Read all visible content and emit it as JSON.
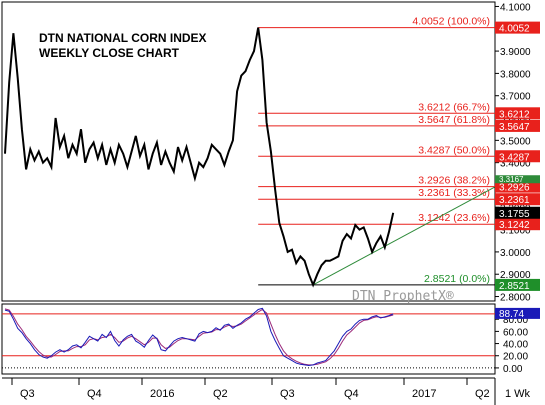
{
  "chart_data": [
    {
      "type": "line",
      "title": "DTN NATIONAL CORN INDEX",
      "subtitle": "WEEKLY CLOSE CHART",
      "watermark": "DTN ProphetX®",
      "ylim": [
        2.78,
        4.12
      ],
      "y_ticks": [
        "4.1000",
        "4.0000",
        "3.9000",
        "3.8000",
        "3.7000",
        "3.6000",
        "3.5000",
        "3.4000",
        "3.3000",
        "3.2000",
        "3.1000",
        "3.0000",
        "2.9000",
        "2.8000"
      ],
      "x_tick_labels": [
        "Q3",
        "Q4",
        "2016",
        "Q2",
        "Q3",
        "Q4",
        "2017",
        "Q2"
      ],
      "series": [
        {
          "color": "#000000",
          "x": [
            0,
            1,
            2,
            3,
            4,
            5,
            6,
            7,
            8,
            9,
            10,
            11,
            12,
            13,
            14,
            15,
            16,
            17,
            18,
            19,
            20,
            21,
            22,
            23,
            24,
            25,
            26,
            27,
            28,
            29,
            30,
            31,
            32,
            33,
            34,
            35,
            36,
            37,
            38,
            39,
            40,
            41,
            42,
            43,
            44,
            45,
            46,
            47,
            48,
            49,
            50,
            51,
            52,
            53,
            54,
            55,
            56,
            57,
            58,
            59,
            60,
            61,
            62,
            63,
            64,
            65,
            66,
            67,
            68,
            69,
            70,
            71,
            72,
            73,
            74,
            75,
            76,
            77,
            78,
            79,
            80,
            81,
            82,
            83,
            84,
            85,
            86,
            87,
            88,
            89,
            90,
            91,
            92
          ],
          "values": [
            3.44,
            3.76,
            3.98,
            3.78,
            3.55,
            3.37,
            3.46,
            3.41,
            3.45,
            3.4,
            3.42,
            3.38,
            3.6,
            3.47,
            3.52,
            3.42,
            3.48,
            3.44,
            3.55,
            3.4,
            3.46,
            3.49,
            3.42,
            3.48,
            3.39,
            3.46,
            3.4,
            3.48,
            3.44,
            3.38,
            3.45,
            3.52,
            3.43,
            3.48,
            3.37,
            3.44,
            3.49,
            3.39,
            3.45,
            3.4,
            3.36,
            3.47,
            3.41,
            3.47,
            3.4,
            3.33,
            3.4,
            3.38,
            3.42,
            3.48,
            3.46,
            3.44,
            3.39,
            3.45,
            3.5,
            3.72,
            3.79,
            3.81,
            3.86,
            3.9,
            4.0052,
            3.86,
            3.58,
            3.45,
            3.28,
            3.13,
            3.07,
            3.0,
            3.01,
            2.95,
            2.98,
            2.96,
            2.9,
            2.8521,
            2.9,
            2.94,
            2.96,
            2.96,
            2.97,
            2.98,
            3.05,
            3.08,
            3.06,
            3.12,
            3.1,
            3.11,
            3.06,
            3.0,
            3.04,
            3.07,
            3.02,
            3.09,
            3.1755
          ]
        }
      ],
      "trendline": {
        "color": "#2e8b3a",
        "from": {
          "x": 73,
          "y": 2.8521
        },
        "to": {
          "x": 116,
          "y": 3.29
        }
      },
      "fib_levels": [
        {
          "value": 4.0052,
          "label": "4.0052 (100.0%)",
          "price": "4.0052"
        },
        {
          "value": 3.6212,
          "label": "3.6212 (66.7%)",
          "price": "3.6212"
        },
        {
          "value": 3.5647,
          "label": "3.5647 (61.8%)",
          "price": "3.5647"
        },
        {
          "value": 3.4287,
          "label": "3.4287 (50.0%)",
          "price": "3.4287"
        },
        {
          "value": 3.2926,
          "label": "3.2926 (38.2%)",
          "price": "3.2926"
        },
        {
          "value": 3.2361,
          "label": "3.2361 (33.3%)",
          "price": "3.2361"
        },
        {
          "value": 3.1242,
          "label": "3.1242 (23.6%)",
          "price": "3.1242"
        },
        {
          "value": 2.8521,
          "label": "2.8521 (0.0%)",
          "price": "2.8521"
        }
      ],
      "last_value": "3.1755",
      "trend_tag": "3.3167",
      "colors": {
        "fib": "#e8211c",
        "last": "#000000",
        "low": "#1f8f2a",
        "trend": "#2e8b3a"
      }
    },
    {
      "type": "line",
      "ylim": [
        -10,
        105
      ],
      "y_ticks": [
        "80.00",
        "60.00",
        "40.00",
        "20.00",
        "0.00"
      ],
      "reference_lines": [
        88.74,
        20
      ],
      "last_value": "88.74",
      "series": [
        {
          "color": "#1a1ab8",
          "values": [
            95,
            93,
            80,
            65,
            58,
            48,
            40,
            30,
            22,
            18,
            16,
            20,
            26,
            30,
            26,
            30,
            36,
            38,
            33,
            42,
            52,
            48,
            44,
            55,
            50,
            60,
            45,
            36,
            46,
            52,
            55,
            44,
            40,
            34,
            45,
            54,
            48,
            30,
            28,
            36,
            44,
            48,
            50,
            48,
            46,
            44,
            56,
            60,
            58,
            60,
            66,
            62,
            70,
            72,
            65,
            70,
            74,
            80,
            84,
            90,
            96,
            98,
            85,
            60,
            45,
            32,
            20,
            16,
            12,
            8,
            6,
            5,
            4,
            5,
            8,
            10,
            12,
            20,
            28,
            40,
            52,
            60,
            64,
            72,
            78,
            80,
            80,
            84,
            86,
            82,
            84,
            86,
            88.74
          ]
        },
        {
          "color": "#9c2a7a",
          "values": [
            97,
            95,
            85,
            72,
            63,
            52,
            44,
            35,
            27,
            21,
            18,
            18,
            22,
            27,
            28,
            28,
            32,
            35,
            35,
            38,
            46,
            48,
            46,
            50,
            51,
            55,
            50,
            42,
            44,
            49,
            52,
            48,
            43,
            38,
            42,
            49,
            49,
            38,
            32,
            34,
            40,
            45,
            48,
            48,
            47,
            46,
            52,
            57,
            58,
            59,
            63,
            63,
            67,
            70,
            68,
            69,
            72,
            77,
            82,
            87,
            92,
            96,
            90,
            72,
            55,
            40,
            28,
            20,
            15,
            11,
            8,
            6,
            5,
            5,
            6,
            8,
            10,
            15,
            22,
            32,
            44,
            54,
            60,
            67,
            74,
            78,
            79,
            82,
            84,
            83,
            83,
            85,
            87
          ]
        }
      ]
    }
  ],
  "time_axis": {
    "labels": [
      "Q3",
      "Q4",
      "2016",
      "Q2",
      "Q3",
      "Q4",
      "2017",
      "Q2"
    ],
    "interval": "1 Wk"
  }
}
